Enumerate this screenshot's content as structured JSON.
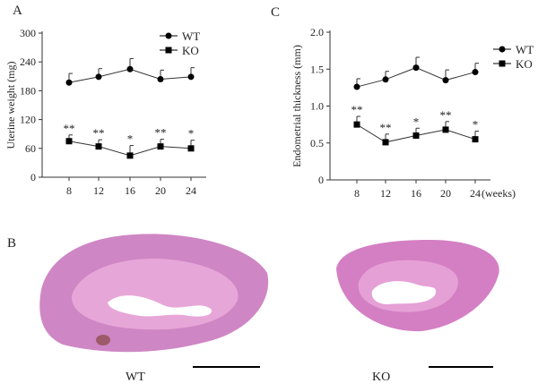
{
  "panels": {
    "a": "A",
    "b": "B",
    "c": "C"
  },
  "chart_data": [
    {
      "type": "line",
      "panel": "A",
      "ylabel": "Uterine weight (mg)",
      "xlabel": "",
      "categories": [
        "8",
        "12",
        "16",
        "20",
        "24"
      ],
      "ylim": [
        0,
        300
      ],
      "yticks": [
        "0",
        "60",
        "120",
        "180",
        "240",
        "300"
      ],
      "legend": "top-right",
      "series": [
        {
          "name": "WT",
          "marker": "circle",
          "values": [
            197,
            209,
            225,
            204,
            209
          ],
          "error": [
            19,
            17,
            22,
            19,
            19
          ],
          "stars": [
            "",
            "",
            "",
            "",
            ""
          ]
        },
        {
          "name": "KO",
          "marker": "square",
          "values": [
            75,
            64,
            45,
            64,
            60
          ],
          "error": [
            13,
            14,
            21,
            15,
            17
          ],
          "stars": [
            "**",
            "**",
            "*",
            "**",
            "*"
          ]
        }
      ]
    },
    {
      "type": "line",
      "panel": "C",
      "ylabel": "Endometrial thickness (mm)",
      "xlabel": "(weeks)",
      "categories": [
        "8",
        "12",
        "16",
        "20",
        "24"
      ],
      "ylim": [
        0,
        2.0
      ],
      "yticks": [
        "0",
        "0.5",
        "1.0",
        "1.5",
        "2.0"
      ],
      "legend": "right",
      "series": [
        {
          "name": "WT",
          "marker": "circle",
          "values": [
            1.26,
            1.36,
            1.52,
            1.35,
            1.46
          ],
          "error": [
            0.11,
            0.11,
            0.14,
            0.14,
            0.12
          ],
          "stars": [
            "",
            "",
            "",
            "",
            ""
          ]
        },
        {
          "name": "KO",
          "marker": "square",
          "values": [
            0.75,
            0.51,
            0.6,
            0.68,
            0.55
          ],
          "error": [
            0.11,
            0.11,
            0.1,
            0.11,
            0.11
          ],
          "stars": [
            "**",
            "**",
            "*",
            "**",
            "*"
          ]
        }
      ]
    }
  ],
  "histology": {
    "left_label": "WT",
    "right_label": "KO",
    "tissue_color": "#d77fc0",
    "lumen_color": "#ffffff"
  }
}
